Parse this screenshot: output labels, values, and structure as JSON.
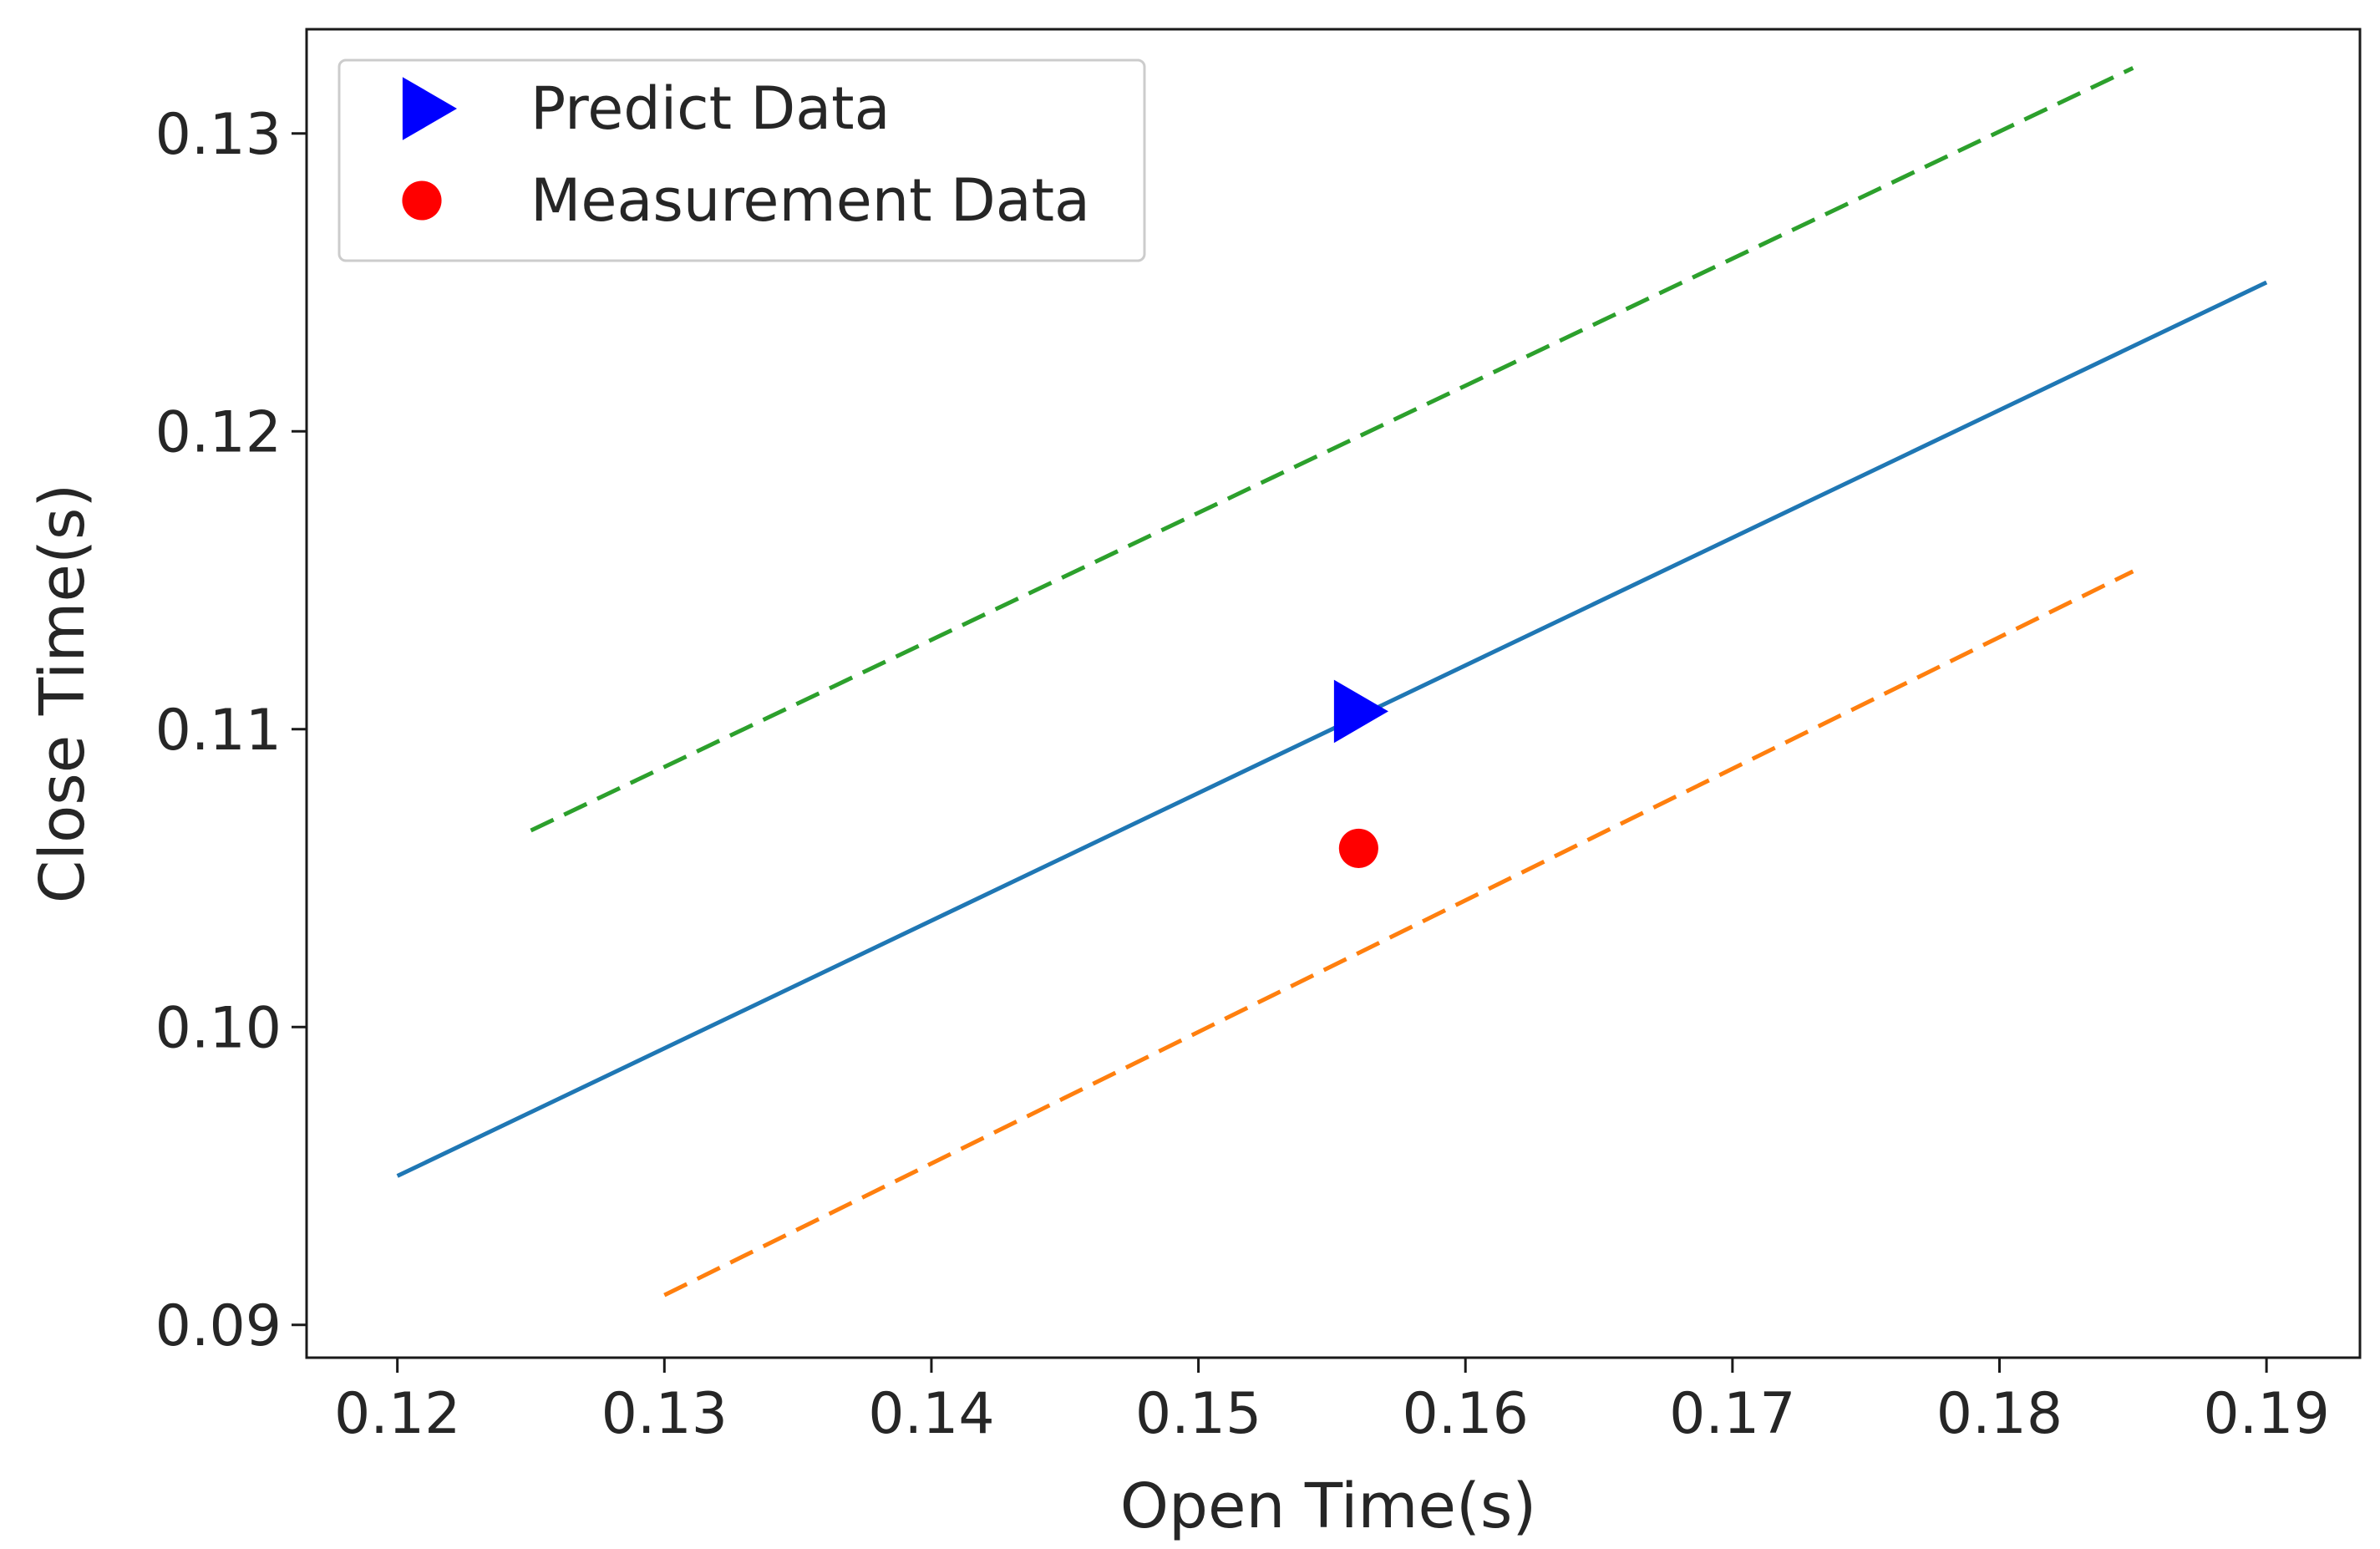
{
  "chart_data": {
    "type": "line",
    "title": "",
    "xlabel": "Open Time(s)",
    "ylabel": "Close Time(s)",
    "xlim": [
      0.1166,
      0.1935
    ],
    "ylim": [
      0.0889,
      0.1335
    ],
    "x_ticks": [
      0.12,
      0.13,
      0.14,
      0.15,
      0.16,
      0.17,
      0.18,
      0.19
    ],
    "x_tick_labels": [
      "0.12",
      "0.13",
      "0.14",
      "0.15",
      "0.16",
      "0.17",
      "0.18",
      "0.19"
    ],
    "y_ticks": [
      0.09,
      0.1,
      0.11,
      0.12,
      0.13
    ],
    "y_tick_labels": [
      "0.09",
      "0.10",
      "0.11",
      "0.12",
      "0.13"
    ],
    "grid": false,
    "legend_position": "top-left",
    "series": [
      {
        "kind": "line",
        "style": "solid",
        "color": "#1f77b4",
        "points": [
          [
            0.12,
            0.095
          ],
          [
            0.19,
            0.125
          ]
        ]
      },
      {
        "kind": "line",
        "style": "dashed",
        "color": "#2ca02c",
        "points": [
          [
            0.125,
            0.1066
          ],
          [
            0.185,
            0.1322
          ]
        ]
      },
      {
        "kind": "line",
        "style": "dashed",
        "color": "#ff7f0e",
        "points": [
          [
            0.13,
            0.091
          ],
          [
            0.185,
            0.1153
          ]
        ]
      },
      {
        "kind": "marker",
        "name": "Predict Data",
        "marker": "triangle-right",
        "color": "#0000ff",
        "points": [
          [
            0.1558,
            0.1106
          ]
        ]
      },
      {
        "kind": "marker",
        "name": "Measurement Data",
        "marker": "circle",
        "color": "#ff0000",
        "points": [
          [
            0.156,
            0.106
          ]
        ]
      }
    ]
  }
}
